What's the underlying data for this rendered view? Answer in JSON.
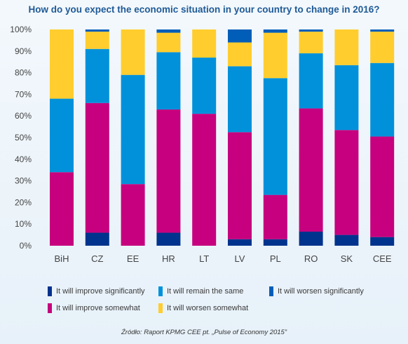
{
  "chart_data": {
    "type": "bar",
    "stacked": true,
    "title": "How do you expect the economic situation in your country to change in 2016?",
    "source": "Źródło: Raport KPMG CEE pt. „Pulse of Economy 2015”",
    "ylim": [
      0,
      100
    ],
    "yticks": [
      "0%",
      "10%",
      "20%",
      "30%",
      "40%",
      "50%",
      "60%",
      "70%",
      "80%",
      "90%",
      "100%"
    ],
    "grid": false,
    "legend_position": "bottom",
    "categories": [
      "BiH",
      "CZ",
      "EE",
      "HR",
      "LT",
      "LV",
      "PL",
      "RO",
      "SK",
      "CEE"
    ],
    "series": [
      {
        "name": "It will improve significantly",
        "color": "#00338d",
        "values": [
          0,
          6,
          0,
          6,
          0,
          3,
          3,
          6.5,
          5,
          4
        ]
      },
      {
        "name": "It will improve somewhat",
        "color": "#c6007e",
        "values": [
          34,
          60,
          28.5,
          57,
          61,
          49.5,
          20.5,
          57,
          48.5,
          46.5
        ]
      },
      {
        "name": "It will remain the same",
        "color": "#0091da",
        "values": [
          34,
          25,
          50.5,
          26.5,
          26,
          30.5,
          54,
          25.5,
          30,
          34
        ]
      },
      {
        "name": "It will worsen somewhat",
        "color": "#ffcd2e",
        "values": [
          32,
          8,
          21,
          9,
          13,
          11,
          21,
          10,
          16.5,
          14.5
        ]
      },
      {
        "name": "It will worsen significantly",
        "color": "#005eb8",
        "values": [
          0,
          1,
          0,
          1.5,
          0,
          6,
          1.5,
          1,
          0,
          1
        ]
      }
    ],
    "legend_order": [
      "It will improve significantly",
      "It will remain the same",
      "It will worsen significantly",
      "It will improve somewhat",
      "It will worsen somewhat"
    ]
  }
}
